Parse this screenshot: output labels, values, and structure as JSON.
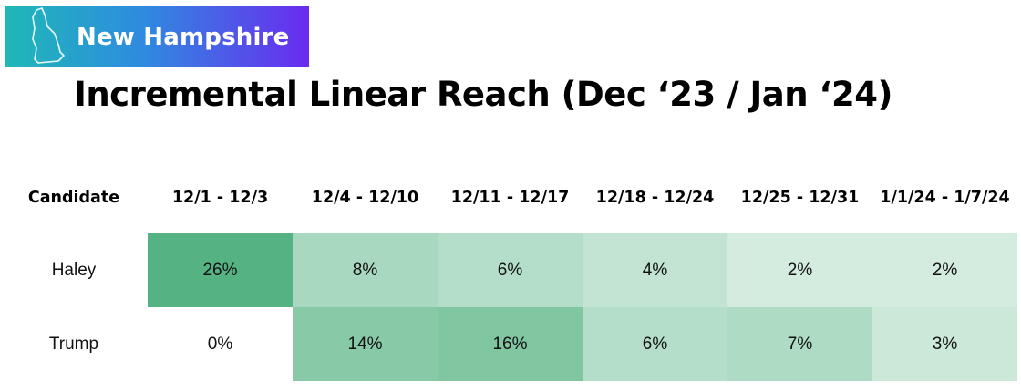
{
  "badge": {
    "label": "New Hampshire",
    "icon": "new-hampshire-state-outline-icon"
  },
  "chart_data": {
    "type": "heatmap",
    "title": "Incremental Linear Reach (Dec ‘23 / Jan ‘24)",
    "row_header": "Candidate",
    "columns": [
      "12/1 - 12/3",
      "12/4 - 12/10",
      "12/11 - 12/17",
      "12/18 - 12/24",
      "12/25 - 12/31",
      "1/1/24 - 1/7/24"
    ],
    "rows": [
      {
        "name": "Haley",
        "values": [
          26,
          8,
          6,
          4,
          2,
          2
        ],
        "labels": [
          "26%",
          "8%",
          "6%",
          "4%",
          "2%",
          "2%"
        ]
      },
      {
        "name": "Trump",
        "values": [
          0,
          14,
          16,
          6,
          7,
          3
        ],
        "labels": [
          "0%",
          "14%",
          "16%",
          "6%",
          "7%",
          "3%"
        ]
      }
    ],
    "value_unit": "%",
    "color_scale": {
      "low": "#ffffff",
      "high": "#55b383"
    }
  }
}
